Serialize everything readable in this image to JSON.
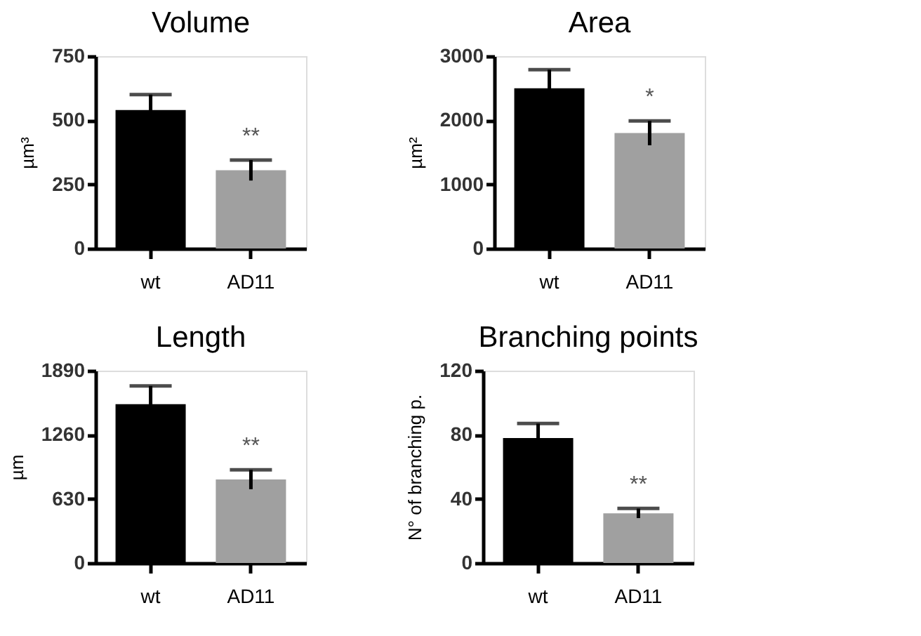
{
  "chart_data": [
    {
      "type": "bar",
      "title": "Volume",
      "ylabel": "µm³",
      "categories": [
        "wt",
        "AD11"
      ],
      "values": [
        540,
        305
      ],
      "errors": [
        60,
        40
      ],
      "colors": [
        "#000000",
        "#a0a0a0"
      ],
      "ylim": [
        0,
        750
      ],
      "yticks": [
        0,
        250,
        500,
        750
      ],
      "grid": false,
      "annotations": [
        {
          "text": "**",
          "x": "AD11",
          "y": 345
        }
      ]
    },
    {
      "type": "bar",
      "title": "Area",
      "ylabel": "µm²",
      "categories": [
        "wt",
        "AD11"
      ],
      "values": [
        2500,
        1800
      ],
      "errors": [
        290,
        190
      ],
      "colors": [
        "#000000",
        "#a0a0a0"
      ],
      "ylim": [
        0,
        3000
      ],
      "yticks": [
        0,
        1000,
        2000,
        3000
      ],
      "grid": false,
      "annotations": [
        {
          "text": "*",
          "x": "AD11",
          "y": 1990
        }
      ]
    },
    {
      "type": "bar",
      "title": "Length",
      "ylabel": "µm",
      "categories": [
        "wt",
        "AD11"
      ],
      "values": [
        1560,
        820
      ],
      "errors": [
        180,
        95
      ],
      "colors": [
        "#000000",
        "#a0a0a0"
      ],
      "ylim": [
        0,
        1890
      ],
      "yticks": [
        0,
        630,
        1260,
        1890
      ],
      "grid": false,
      "annotations": [
        {
          "text": "**",
          "x": "AD11",
          "y": 915
        }
      ]
    },
    {
      "type": "bar",
      "title": "Branching points",
      "ylabel": "N° of branching p.",
      "categories": [
        "wt",
        "AD11"
      ],
      "values": [
        78,
        31
      ],
      "errors": [
        9,
        3
      ],
      "colors": [
        "#000000",
        "#a0a0a0"
      ],
      "ylim": [
        0,
        120
      ],
      "yticks": [
        0,
        40,
        80,
        120
      ],
      "grid": false,
      "annotations": [
        {
          "text": "**",
          "x": "AD11",
          "y": 34
        }
      ]
    }
  ]
}
